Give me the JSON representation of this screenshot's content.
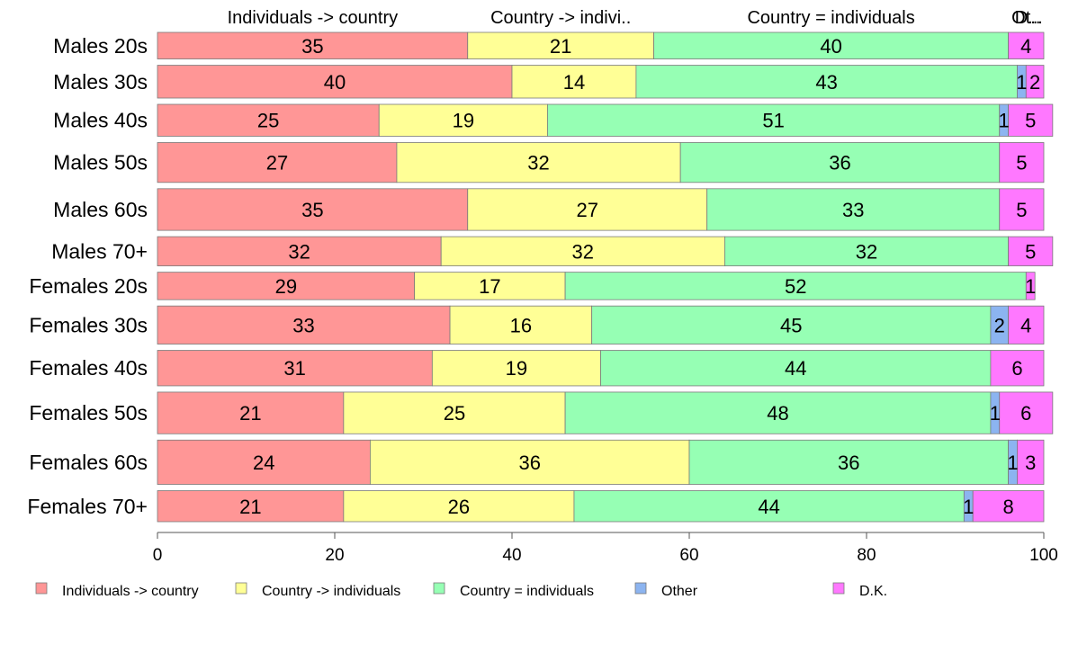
{
  "chart_data": {
    "type": "bar",
    "orientation": "horizontal",
    "stacked": true,
    "title": "",
    "xlabel": "",
    "ylabel": "",
    "xlim": [
      0,
      100
    ],
    "x_ticks": [
      "0",
      "20",
      "40",
      "60",
      "80",
      "100"
    ],
    "grid": false,
    "legend_position": "bottom",
    "categories": [
      "Males 20s",
      "Males 30s",
      "Males 40s",
      "Males 50s",
      "Males 60s",
      "Males 70+",
      "Females 20s",
      "Females 30s",
      "Females 40s",
      "Females 50s",
      "Females 60s",
      "Females 70+"
    ],
    "category_weights": [
      30,
      37,
      36,
      45,
      47,
      33,
      31,
      43,
      40,
      47,
      50,
      35
    ],
    "series": [
      {
        "name": "Individuals -> country",
        "top_label": "Individuals -> country",
        "color": "#FF9696",
        "values": [
          35,
          40,
          25,
          27,
          35,
          32,
          29,
          33,
          31,
          21,
          24,
          21
        ]
      },
      {
        "name": "Country -> individuals",
        "top_label": "Country -> indivi..",
        "color": "#FFFF96",
        "values": [
          21,
          14,
          19,
          32,
          27,
          32,
          17,
          16,
          19,
          25,
          36,
          26
        ]
      },
      {
        "name": "Country = individuals",
        "top_label": "Country = individuals",
        "color": "#96FFB4",
        "values": [
          40,
          43,
          51,
          36,
          33,
          32,
          52,
          45,
          44,
          48,
          36,
          44
        ]
      },
      {
        "name": "Other",
        "top_label": "Ot..",
        "color": "#8CB4F0",
        "values": [
          0,
          1,
          1,
          0,
          0,
          0,
          0,
          2,
          0,
          1,
          1,
          1
        ]
      },
      {
        "name": "D.K.",
        "top_label": "D...",
        "color": "#FF78FF",
        "values": [
          4,
          2,
          5,
          5,
          5,
          5,
          1,
          4,
          6,
          6,
          3,
          8
        ]
      }
    ]
  }
}
